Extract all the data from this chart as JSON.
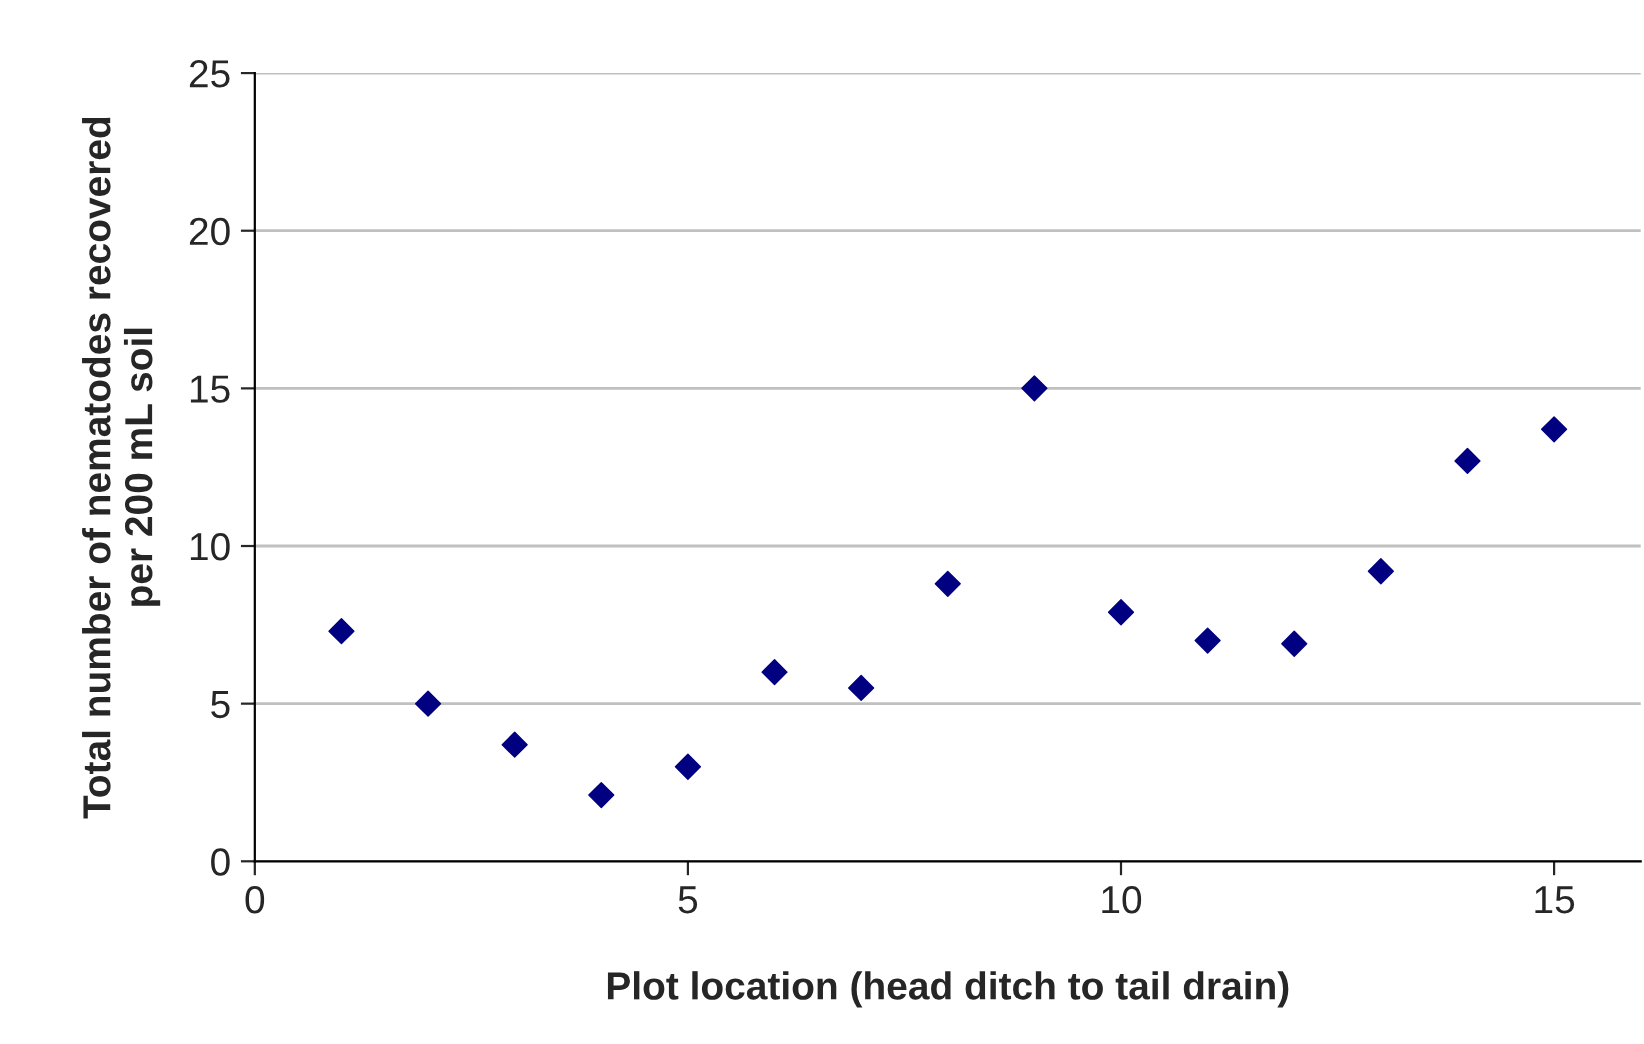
{
  "chart_data": {
    "type": "scatter",
    "xlabel": "Plot location (head ditch to tail drain)",
    "ylabel": "Total number of nematodes recovered\nper 200 mL soil",
    "x": [
      1,
      2,
      3,
      4,
      5,
      6,
      7,
      8,
      9,
      10,
      11,
      12,
      13,
      14,
      15
    ],
    "series": [
      {
        "color": "#000080",
        "values": [
          7.3,
          5.0,
          3.7,
          2.1,
          3.0,
          6.0,
          5.5,
          8.8,
          15.0,
          7.9,
          7.0,
          6.9,
          9.2,
          12.7,
          13.7
        ]
      }
    ],
    "xlim": [
      0,
      16
    ],
    "xticks": [
      0,
      5,
      10,
      15
    ],
    "ylim": [
      0,
      25
    ],
    "yticks": [
      0,
      5,
      10,
      15,
      20,
      25
    ],
    "grid": "y",
    "marker": "diamond",
    "legend": false
  }
}
